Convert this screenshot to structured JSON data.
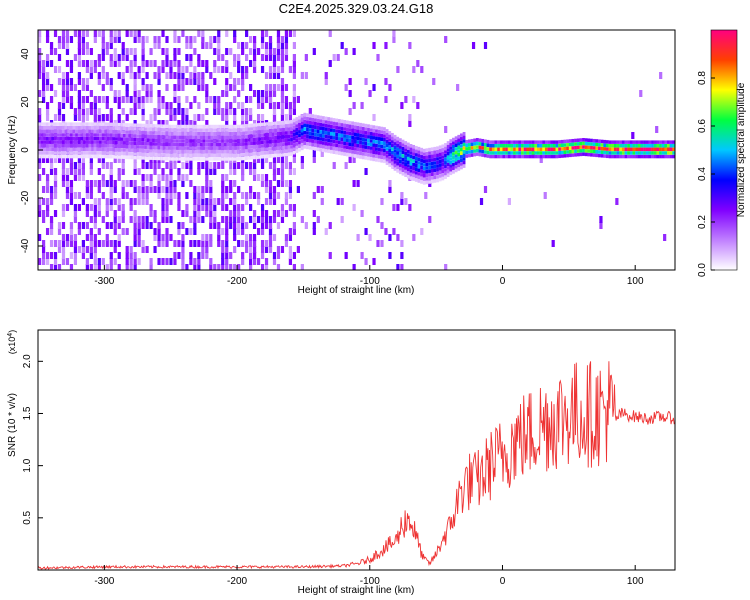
{
  "title": "C2E4.2025.329.03.24.G18",
  "chart_data": [
    {
      "type": "heatmap",
      "xlabel": "Height of straight line (km)",
      "ylabel": "Frequency (Hz)",
      "xlim": [
        -350,
        130
      ],
      "ylim": [
        -50,
        50
      ],
      "x_ticks": [
        -300,
        -200,
        -100,
        0,
        100
      ],
      "x_tick_labels": [
        "-300",
        "-200",
        "-100",
        "0",
        "100"
      ],
      "y_ticks": [
        -40,
        -20,
        0,
        20,
        40
      ],
      "y_tick_labels": [
        "-40",
        "-20",
        "0",
        "20",
        "40"
      ],
      "colorbar": {
        "label": "Normalized spectral amplitude",
        "range": [
          0,
          1
        ],
        "ticks": [
          0.0,
          0.2,
          0.4,
          0.6,
          0.8
        ],
        "tick_labels": [
          "0.0",
          "0.2",
          "0.4",
          "0.6",
          "0.8"
        ],
        "colors": [
          "#ffffff",
          "#c080ff",
          "#8000ff",
          "#0000ff",
          "#00c8ff",
          "#00ff40",
          "#ffff00",
          "#ff4000",
          "#ff0080"
        ]
      },
      "ridge": {
        "x": [
          -350,
          -300,
          -250,
          -200,
          -160,
          -150,
          -130,
          -110,
          -90,
          -80,
          -70,
          -60,
          -50,
          -45,
          -40,
          -30,
          -20,
          -10,
          0,
          20,
          40,
          60,
          80,
          100,
          130
        ],
        "y": [
          4,
          4,
          3,
          3,
          5,
          8,
          6,
          4,
          2,
          -2,
          -5,
          -7,
          -6,
          -5,
          -3,
          0,
          1,
          0,
          0,
          0,
          0,
          1,
          0,
          0,
          0
        ],
        "amplitude": [
          0.25,
          0.25,
          0.22,
          0.22,
          0.3,
          0.45,
          0.45,
          0.45,
          0.45,
          0.5,
          0.5,
          0.45,
          0.4,
          0.35,
          0.6,
          0.75,
          0.8,
          0.8,
          0.85,
          0.9,
          0.9,
          0.95,
          0.9,
          0.95,
          0.95
        ]
      },
      "grid": false
    },
    {
      "type": "line",
      "xlabel": "Height of straight line (km)",
      "ylabel": "SNR (10 * v/v)",
      "y_multiplier_label": "(x10",
      "y_multiplier_exp": "4",
      "y_multiplier_close": ")",
      "xlim": [
        -350,
        130
      ],
      "ylim": [
        0,
        2.3
      ],
      "x_ticks": [
        -300,
        -200,
        -100,
        0,
        100
      ],
      "x_tick_labels": [
        "-300",
        "-200",
        "-100",
        "0",
        "100"
      ],
      "y_ticks": [
        0.5,
        1.0,
        1.5,
        2.0
      ],
      "y_tick_labels": [
        "0.5",
        "1.0",
        "1.5",
        "2.0"
      ],
      "color": "#ee3333",
      "series": [
        {
          "x": [
            -350,
            -300,
            -250,
            -200,
            -150,
            -120,
            -110,
            -100,
            -90,
            -80,
            -75,
            -70,
            -65,
            -60,
            -55,
            -50,
            -45,
            -40,
            -35,
            -30,
            -25,
            -20,
            -15,
            -10,
            -5,
            0,
            10,
            20,
            30,
            40,
            50,
            60,
            70,
            80,
            85,
            90,
            100,
            110,
            120,
            130
          ],
          "y": [
            0.02,
            0.03,
            0.03,
            0.03,
            0.03,
            0.04,
            0.06,
            0.1,
            0.2,
            0.28,
            0.45,
            0.5,
            0.32,
            0.12,
            0.06,
            0.15,
            0.3,
            0.4,
            0.6,
            0.8,
            0.85,
            0.85,
            0.9,
            1.0,
            1.05,
            1.1,
            1.25,
            1.3,
            1.4,
            1.45,
            1.5,
            1.5,
            1.5,
            1.55,
            1.45,
            1.5,
            1.47,
            1.45,
            1.47,
            1.45
          ]
        }
      ],
      "grid": false
    }
  ]
}
